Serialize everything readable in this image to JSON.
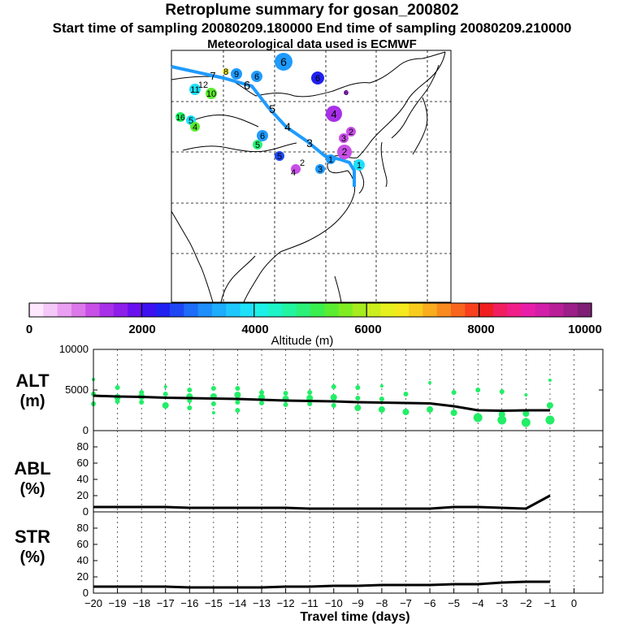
{
  "header": {
    "title": "Retroplume summary for gosan_200802",
    "sampling_line": "Start time of sampling 20080209.180000     End time of sampling 20080209.210000",
    "met_line": "Meteorological data used is ECMWF"
  },
  "colors": {
    "trajectory": "#1E9BFF",
    "alt_markers": "#22EE66",
    "line": "#000000",
    "map_land": "#ffffff",
    "map_lines": "#000000"
  },
  "colorbar": {
    "title": "Altitude (m)",
    "tick_labels": [
      "0",
      "2000",
      "4000",
      "6000",
      "8000",
      "10000"
    ],
    "tick_values": [
      0,
      2000,
      4000,
      6000,
      8000,
      10000
    ],
    "range": [
      0,
      10000
    ],
    "colors": [
      "#FFE8FF",
      "#F4C8F8",
      "#EAA0F2",
      "#DC78EA",
      "#C84FE6",
      "#A830E8",
      "#8E1EEA",
      "#6A10EE",
      "#3C10F0",
      "#2020F0",
      "#1E46F4",
      "#1E6CF8",
      "#1E8EFA",
      "#1EACFC",
      "#1EC8FC",
      "#1EE0FA",
      "#1EF0E8",
      "#1EF4C8",
      "#22F4A0",
      "#2CF078",
      "#3AEE50",
      "#5AEC30",
      "#80EC22",
      "#A6EC1E",
      "#CCEE1E",
      "#E6F01E",
      "#F4E81E",
      "#F8CC1E",
      "#F8AC1E",
      "#F88A1E",
      "#F8661E",
      "#F8401E",
      "#F01E1E",
      "#F01E60",
      "#F01E88",
      "#E81EA8",
      "#D21EA8",
      "#B81E98",
      "#9C1E88",
      "#7E1E74"
    ]
  },
  "map": {
    "markers": [
      {
        "label": "6",
        "color": "#1E9BFF",
        "size": "big"
      },
      {
        "label": "7",
        "color": "#1E9BFF",
        "size": "none"
      },
      {
        "label": "8",
        "color": "#EEEE22",
        "size": "tiny"
      },
      {
        "label": "9",
        "color": "#1E9BFF",
        "size": "small"
      },
      {
        "label": "11",
        "color": "#1EE0FA",
        "size": "small"
      },
      {
        "label": "12",
        "color": "#1EE0FA",
        "size": "none"
      },
      {
        "label": "10",
        "color": "#5AEC30",
        "size": "small"
      },
      {
        "label": "6",
        "color": "#1E9BFF",
        "size": "none"
      },
      {
        "label": "5",
        "color": "#1E9BFF",
        "size": "none"
      },
      {
        "label": "4",
        "color": "#A830E8",
        "size": "big"
      },
      {
        "label": "4",
        "color": "#1E9BFF",
        "size": "none"
      },
      {
        "label": "3",
        "color": "#1E9BFF",
        "size": "none"
      },
      {
        "label": "3",
        "color": "#C84FE6",
        "size": "small"
      },
      {
        "label": "2",
        "color": "#C84FE6",
        "size": "small"
      },
      {
        "label": "2",
        "color": "#C84FE6",
        "size": "big"
      },
      {
        "label": "1",
        "color": "#1E9BFF",
        "size": "small"
      },
      {
        "label": "1",
        "color": "#1EE0FA",
        "size": "small"
      },
      {
        "label": "16",
        "color": "#22EE66",
        "size": "small"
      },
      {
        "label": "5",
        "color": "#1EE0FA",
        "size": "small"
      },
      {
        "label": "4",
        "color": "#5AEC30",
        "size": "small"
      },
      {
        "label": "6",
        "color": "#1E9BFF",
        "size": "small"
      },
      {
        "label": "6",
        "color": "#1E9BFF",
        "size": "small"
      },
      {
        "label": "5",
        "color": "#2CF078",
        "size": "small"
      },
      {
        "label": "4",
        "color": "#C84FE6",
        "size": "small"
      },
      {
        "label": "2",
        "color": "#22EE66",
        "size": "small"
      },
      {
        "label": "3",
        "color": "#1E9BFF",
        "size": "small"
      },
      {
        "label": "6",
        "color": "#2020F0",
        "size": "small"
      },
      {
        "label": "6",
        "color": "#A830E8",
        "size": "tiny"
      },
      {
        "label": "5",
        "color": "#1E46F4",
        "size": "small"
      }
    ]
  },
  "chart_data": [
    {
      "type": "scatter",
      "name": "ALT",
      "ylabel": "ALT\n(m)",
      "ylabel_lines": [
        "ALT",
        "(m)"
      ],
      "ylim": [
        0,
        10000
      ],
      "yticks": [
        0,
        5000,
        10000
      ],
      "ytick_labels": [
        "0",
        "5000",
        "10000"
      ],
      "xlim": [
        -20,
        0
      ],
      "series": [
        {
          "name": "mean altitude",
          "kind": "line",
          "x": [
            -20,
            -19,
            -18,
            -17,
            -16,
            -15,
            -14,
            -13,
            -12,
            -11,
            -10,
            -9,
            -8,
            -7,
            -6,
            -5,
            -4,
            -3,
            -2,
            -1
          ],
          "y": [
            4300,
            4200,
            4150,
            4050,
            4000,
            3950,
            3900,
            3800,
            3700,
            3650,
            3600,
            3500,
            3450,
            3400,
            3350,
            3000,
            2500,
            2450,
            2500,
            2500
          ]
        },
        {
          "name": "particle altitudes",
          "kind": "markers",
          "x": [
            -20,
            -20,
            -20,
            -19,
            -19,
            -19,
            -18,
            -18,
            -18,
            -17,
            -17,
            -17,
            -16,
            -16,
            -16,
            -16,
            -15,
            -15,
            -15,
            -15,
            -14,
            -14,
            -14,
            -14,
            -13,
            -13,
            -13,
            -12,
            -12,
            -12,
            -11,
            -11,
            -11,
            -10,
            -10,
            -10,
            -9,
            -9,
            -9,
            -8,
            -8,
            -8,
            -7,
            -7,
            -6,
            -6,
            -5,
            -5,
            -4,
            -4,
            -3,
            -3,
            -3,
            -2,
            -2,
            -2,
            -1,
            -1,
            -1
          ],
          "y": [
            6300,
            4500,
            3300,
            5300,
            4100,
            3600,
            4700,
            4200,
            3500,
            5400,
            4500,
            3100,
            5000,
            4200,
            3700,
            2800,
            5200,
            4200,
            3300,
            2200,
            5200,
            4400,
            3500,
            2500,
            4700,
            4100,
            3400,
            4600,
            3900,
            3200,
            4700,
            4000,
            3300,
            5400,
            4100,
            3100,
            5300,
            4000,
            2800,
            5500,
            3900,
            2600,
            4500,
            2300,
            5900,
            2600,
            4700,
            2200,
            5000,
            1600,
            4800,
            2000,
            1300,
            4400,
            2100,
            1000,
            6200,
            3100,
            1300
          ],
          "size": [
            1,
            2,
            2,
            2,
            3,
            2,
            2,
            3,
            2,
            1,
            2,
            3,
            2,
            3,
            2,
            2,
            2,
            3,
            2,
            1,
            2,
            3,
            2,
            2,
            2,
            3,
            2,
            2,
            3,
            2,
            2,
            3,
            2,
            2,
            3,
            2,
            2,
            2,
            3,
            1,
            2,
            3,
            2,
            3,
            1,
            3,
            2,
            3,
            2,
            4,
            2,
            3,
            4,
            1,
            3,
            4,
            1,
            3,
            4
          ]
        }
      ]
    },
    {
      "type": "line",
      "name": "ABL",
      "ylabel": "ABL\n(%)",
      "ylabel_lines": [
        "ABL",
        "(%)"
      ],
      "ylim": [
        0,
        90
      ],
      "yticks": [
        0,
        20,
        40,
        60,
        80
      ],
      "ytick_labels": [
        "0",
        "20",
        "40",
        "60",
        "80"
      ],
      "xlim": [
        -20,
        0
      ],
      "x": [
        -20,
        -19,
        -18,
        -17,
        -16,
        -15,
        -14,
        -13,
        -12,
        -11,
        -10,
        -9,
        -8,
        -7,
        -6,
        -5,
        -4,
        -3,
        -2,
        -1
      ],
      "y": [
        6,
        6,
        6,
        6,
        5,
        5,
        5,
        5,
        5,
        4,
        4,
        4,
        4,
        4,
        4,
        6,
        6,
        5,
        4,
        20
      ]
    },
    {
      "type": "line",
      "name": "STR",
      "ylabel": "STR\n(%)",
      "ylabel_lines": [
        "STR",
        "(%)"
      ],
      "ylim": [
        0,
        90
      ],
      "yticks": [
        0,
        20,
        40,
        60,
        80
      ],
      "ytick_labels": [
        "0",
        "20",
        "40",
        "60",
        "80"
      ],
      "xlim": [
        -20,
        0
      ],
      "xlabel": "Travel time (days)",
      "xticks": [
        -20,
        -19,
        -18,
        -17,
        -16,
        -15,
        -14,
        -13,
        -12,
        -11,
        -10,
        -9,
        -8,
        -7,
        -6,
        -5,
        -4,
        -3,
        -2,
        -1,
        0
      ],
      "xtick_labels": [
        "−20",
        "−19",
        "−18",
        "−17",
        "−16",
        "−15",
        "−14",
        "−13",
        "−12",
        "−11",
        "−10",
        "−9",
        "−8",
        "−7",
        "−6",
        "−5",
        "−4",
        "−3",
        "−2",
        "−1",
        "0"
      ],
      "x": [
        -20,
        -19,
        -18,
        -17,
        -16,
        -15,
        -14,
        -13,
        -12,
        -11,
        -10,
        -9,
        -8,
        -7,
        -6,
        -5,
        -4,
        -3,
        -2,
        -1
      ],
      "y": [
        8,
        8,
        8,
        8,
        7,
        7,
        7,
        7,
        8,
        8,
        9,
        9,
        10,
        10,
        10,
        11,
        11,
        13,
        14,
        14
      ]
    }
  ]
}
